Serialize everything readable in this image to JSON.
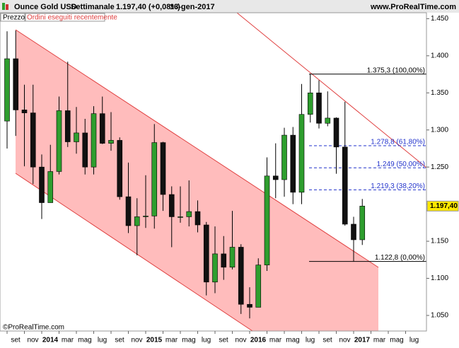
{
  "chart_data": {
    "type": "candlestick",
    "title": "Ounce Gold USD",
    "period": "Settimanale",
    "last_price_text": "1.197,40 (+0,08%)",
    "date": "13-gen-2017",
    "source": "www.ProRealTime.com",
    "legend": [
      "Prezzo",
      "Ordini eseguiti recentemente"
    ],
    "copyright": "©ProRealTime.com",
    "x_labels": [
      "set",
      "nov",
      "2014",
      "mar",
      "mag",
      "lug",
      "set",
      "nov",
      "2015",
      "mar",
      "mag",
      "lug",
      "set",
      "nov",
      "2016",
      "mar",
      "mag",
      "lug",
      "set",
      "nov",
      "2017",
      "mar",
      "mag",
      "lug"
    ],
    "open": [
      1312,
      1396,
      1327,
      1323,
      1250,
      1202,
      1244,
      1326,
      1284,
      1296,
      1250,
      1322,
      1282,
      1286,
      1210,
      1171,
      1183,
      1184,
      1283,
      1213,
      1183,
      1183,
      1190,
      1172,
      1095,
      1133,
      1115,
      1142,
      1065,
      1061,
      1118,
      1238,
      1233,
      1293,
      1216,
      1321,
      1350,
      1309,
      1316,
      1277,
      1173,
      1152
    ],
    "high": [
      1433,
      1434,
      1361,
      1361,
      1267,
      1280,
      1345,
      1392,
      1331,
      1315,
      1332,
      1345,
      1324,
      1290,
      1256,
      1208,
      1239,
      1308,
      1284,
      1224,
      1224,
      1232,
      1205,
      1176,
      1170,
      1157,
      1191,
      1146,
      1088,
      1127,
      1263,
      1282,
      1303,
      1304,
      1362,
      1375,
      1367,
      1352,
      1317,
      1338,
      1183,
      1207
    ],
    "low": [
      1275,
      1292,
      1251,
      1227,
      1180,
      1202,
      1240,
      1277,
      1268,
      1240,
      1240,
      1281,
      1272,
      1206,
      1161,
      1131,
      1168,
      1167,
      1191,
      1142,
      1175,
      1170,
      1162,
      1077,
      1080,
      1098,
      1112,
      1052,
      1046,
      1061,
      1110,
      1208,
      1210,
      1200,
      1200,
      1310,
      1302,
      1305,
      1241,
      1171,
      1123,
      1145
    ],
    "close": [
      1396,
      1327,
      1323,
      1250,
      1202,
      1244,
      1326,
      1284,
      1296,
      1250,
      1322,
      1282,
      1286,
      1210,
      1171,
      1183,
      1184,
      1283,
      1213,
      1183,
      1183,
      1190,
      1172,
      1095,
      1133,
      1115,
      1142,
      1065,
      1061,
      1118,
      1238,
      1233,
      1293,
      1216,
      1321,
      1350,
      1309,
      1316,
      1277,
      1173,
      1152,
      1197.4
    ],
    "up_color": "#2e9e2e",
    "down_color": "#111111",
    "channel_color": "#ff9f9f",
    "ylim": [
      1029,
      1458
    ],
    "yticks": [
      {
        "value": 1050,
        "label": "1.050"
      },
      {
        "value": 1100,
        "label": "1.100"
      },
      {
        "value": 1150,
        "label": "1.150"
      },
      {
        "value": 1200,
        "label": "1.200"
      },
      {
        "value": 1250,
        "label": "1.250"
      },
      {
        "value": 1300,
        "label": "1.300"
      },
      {
        "value": 1350,
        "label": "1.350"
      },
      {
        "value": 1400,
        "label": "1.400"
      },
      {
        "value": 1450,
        "label": "1.450"
      }
    ],
    "price_tag": {
      "value": 1197.4,
      "label": "1.197,40"
    },
    "fib_levels": [
      {
        "value": 1375.3,
        "label": "1.375,3 (100,00%)"
      },
      {
        "value": 1278.8,
        "label": "1.278,8 (61,80%)"
      },
      {
        "value": 1249,
        "label": "1.249 (50,00%)"
      },
      {
        "value": 1219.3,
        "label": "1.219,3 (38,20%)"
      },
      {
        "value": 1122.8,
        "label": "1.122,8 (0,00%)"
      }
    ]
  }
}
